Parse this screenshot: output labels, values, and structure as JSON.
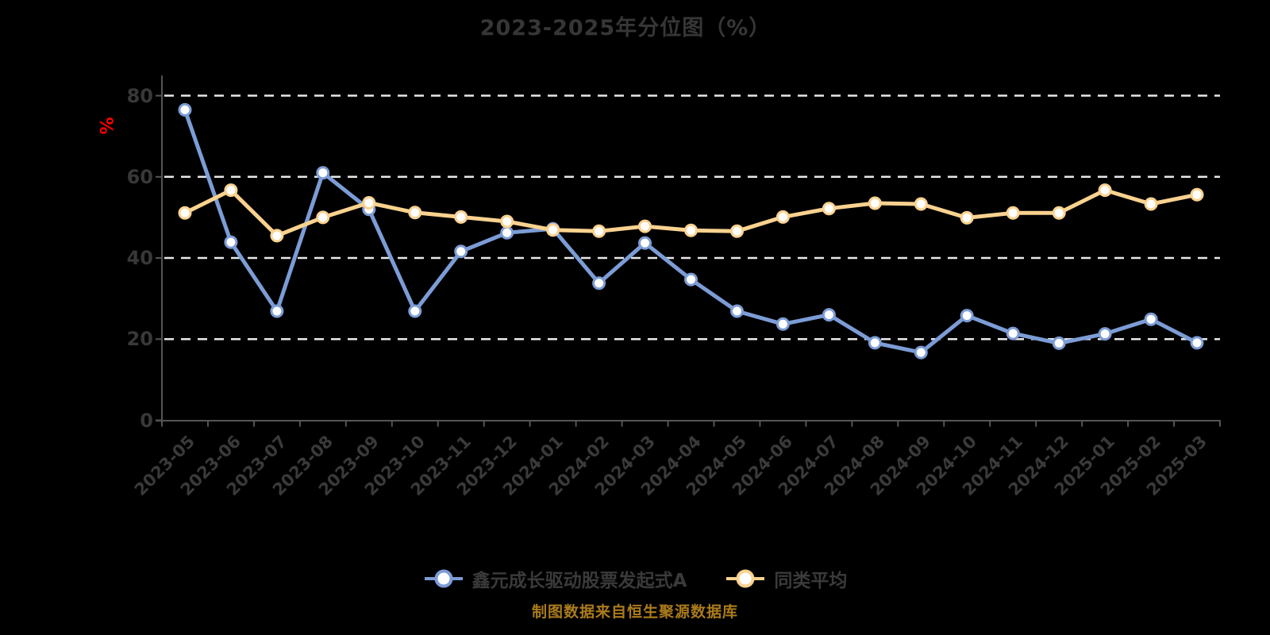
{
  "title": "2023-2025年分位图（%）",
  "footer": "制图数据来自恒生聚源数据库",
  "y_axis_name": "%",
  "colors": {
    "background": "#000000",
    "series_fund": "#7c9cd6",
    "series_avg": "#fad28f",
    "marker_fill": "#ffffff",
    "gridline": "#e8e8e8",
    "axis_line": "#555555",
    "tick_label": "#383838",
    "title_text": "#363636",
    "y_axis_name_text": "#ff0000",
    "footer_text": "#ab7b1b"
  },
  "chart_data": {
    "type": "line",
    "title": "2023-2025年分位图（%）",
    "ylabel": "%",
    "xlabel": "",
    "ylim": [
      0,
      80
    ],
    "yticks": [
      0,
      20,
      40,
      60,
      80
    ],
    "grid": "horizontal dashed",
    "legend_position": "bottom",
    "categories": [
      "2023-05",
      "2023-06",
      "2023-07",
      "2023-08",
      "2023-09",
      "2023-10",
      "2023-11",
      "2023-12",
      "2024-01",
      "2024-02",
      "2024-03",
      "2024-04",
      "2024-05",
      "2024-06",
      "2024-07",
      "2024-08",
      "2024-09",
      "2024-10",
      "2024-11",
      "2024-12",
      "2025-01",
      "2025-02",
      "2025-03"
    ],
    "series": [
      {
        "name": "鑫元成长驱动股票发起式A",
        "color": "#7c9cd6",
        "values": [
          76.5,
          43.9,
          26.9,
          61.0,
          52.0,
          26.9,
          41.6,
          46.2,
          47.2,
          33.8,
          43.7,
          34.7,
          26.9,
          23.7,
          26.0,
          19.1,
          16.7,
          25.8,
          21.4,
          19.0,
          21.3,
          24.9,
          19.1
        ]
      },
      {
        "name": "同类平均",
        "color": "#fad28f",
        "values": [
          51.1,
          56.7,
          45.5,
          50.0,
          53.6,
          51.2,
          50.1,
          49.0,
          46.9,
          46.6,
          47.8,
          46.8,
          46.6,
          50.1,
          52.2,
          53.5,
          53.3,
          49.9,
          51.1,
          51.1,
          56.7,
          53.3,
          55.6
        ]
      }
    ]
  }
}
